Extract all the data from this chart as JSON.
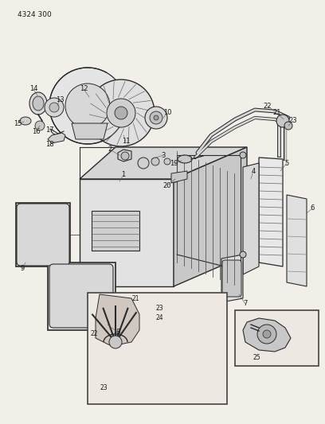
{
  "part_number": "4324 300",
  "background_color": "#f2efe9",
  "line_color": "#2a2a2a",
  "text_color": "#1a1a1a",
  "fig_width": 4.08,
  "fig_height": 5.33,
  "dpi": 100,
  "part_number_fontsize": 6.5
}
